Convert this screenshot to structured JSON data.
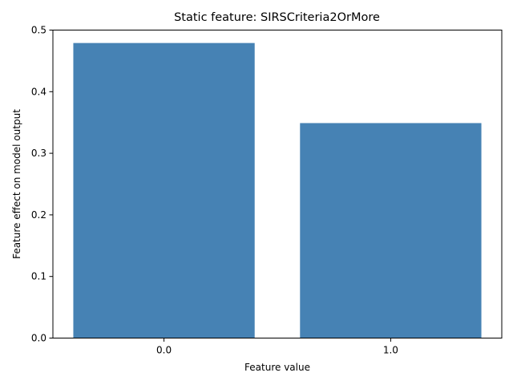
{
  "chart_data": {
    "type": "bar",
    "title": "Static feature: SIRSCriteria2OrMore",
    "xlabel": "Feature value",
    "ylabel": "Feature effect on model output",
    "categories": [
      "0.0",
      "1.0"
    ],
    "values": [
      0.479,
      0.349
    ],
    "ylim": [
      0,
      0.5
    ],
    "yticks": [
      "0.0",
      "0.1",
      "0.2",
      "0.3",
      "0.4",
      "0.5"
    ],
    "grid": false,
    "legend": "none",
    "bar_color": "#4682b4"
  }
}
